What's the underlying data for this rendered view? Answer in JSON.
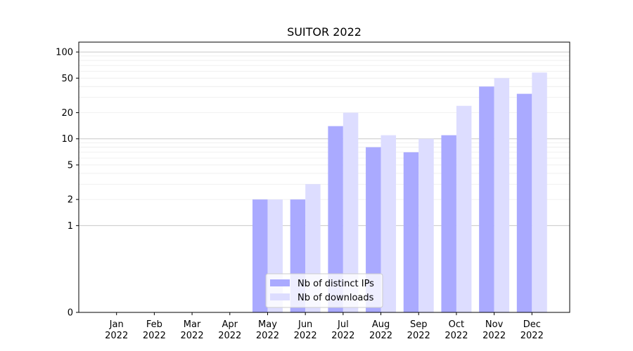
{
  "chart_data": {
    "type": "bar",
    "title": "SUITOR 2022",
    "xlabel": "",
    "ylabel": "",
    "yscale": "symlog",
    "ylim": [
      0,
      130
    ],
    "yticks": [
      0,
      1,
      2,
      5,
      10,
      20,
      50,
      100
    ],
    "grid": "y-major-and-minor",
    "legend_position": "bottom-center",
    "categories": [
      "Jan\n2022",
      "Feb\n2022",
      "Mar\n2022",
      "Apr\n2022",
      "May\n2022",
      "Jun\n2022",
      "Jul\n2022",
      "Aug\n2022",
      "Sep\n2022",
      "Oct\n2022",
      "Nov\n2022",
      "Dec\n2022"
    ],
    "category_month": [
      "Jan",
      "Feb",
      "Mar",
      "Apr",
      "May",
      "Jun",
      "Jul",
      "Aug",
      "Sep",
      "Oct",
      "Nov",
      "Dec"
    ],
    "category_year": "2022",
    "series": [
      {
        "name": "Nb of distinct IPs",
        "color": "#aaaaff",
        "values": [
          0,
          0,
          0,
          0,
          2,
          2,
          14,
          8,
          7,
          11,
          40,
          33
        ]
      },
      {
        "name": "Nb of downloads",
        "color": "#ddddff",
        "values": [
          0,
          0,
          0,
          0,
          2,
          3,
          20,
          11,
          10,
          24,
          50,
          58
        ]
      }
    ]
  }
}
